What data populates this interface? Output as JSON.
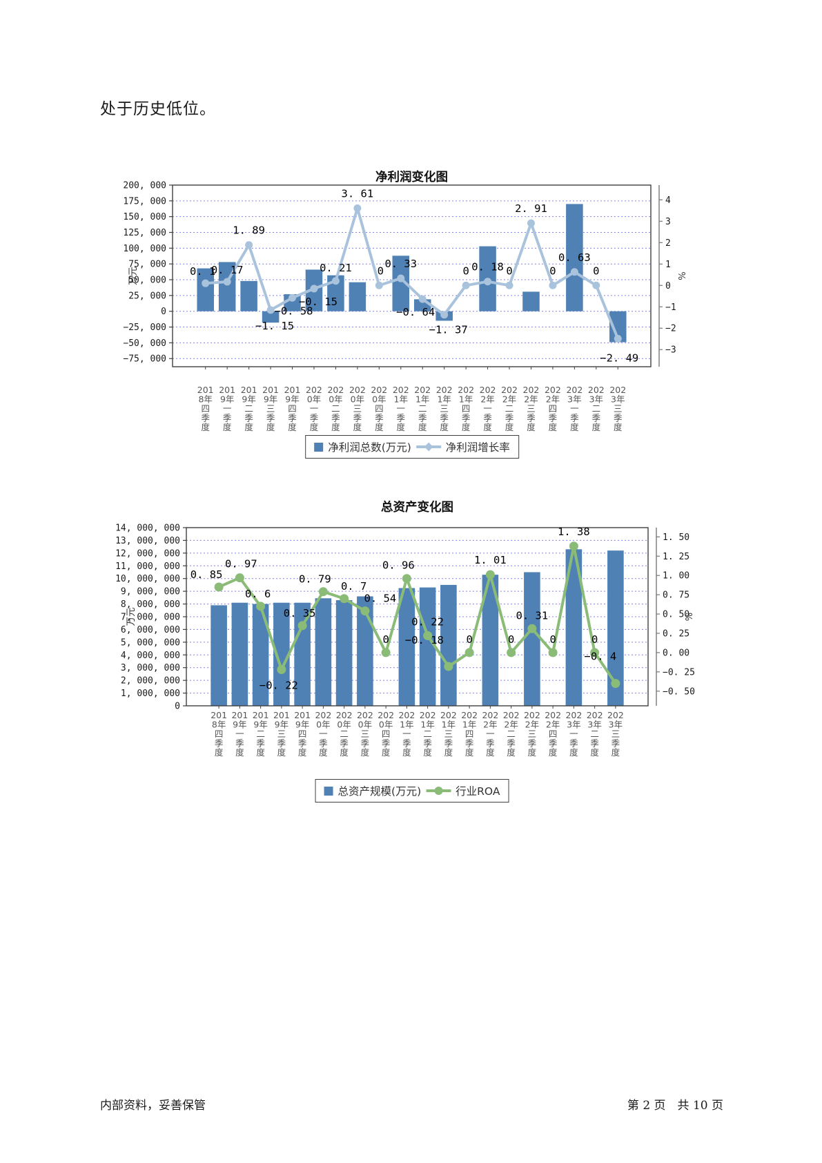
{
  "page": {
    "intro_text": "处于历史低位。",
    "footer": {
      "left": "内部资料，妥善保管",
      "right": "第 2 页　共 10 页"
    }
  },
  "colors": {
    "bar_blue": "#4f81b5",
    "line_light_blue": "#aac3dc",
    "line_green": "#8abc78",
    "gridline": "#8080e8",
    "axis": "#3f3f3f",
    "tick_text": "#1a1a1a",
    "category_text": "#555555"
  },
  "chart_data": [
    {
      "type": "bar",
      "title": "净利润变化图",
      "categories": [
        "2018年四季度",
        "2019年一季度",
        "2019年二季度",
        "2019年三季度",
        "2019年四季度",
        "2020年一季度",
        "2020年二季度",
        "2020年三季度",
        "2020年四季度",
        "2021年一季度",
        "2021年二季度",
        "2021年三季度",
        "2021年四季度",
        "2022年一季度",
        "2022年二季度",
        "2022年三季度",
        "2022年四季度",
        "2023年一季度",
        "2023年二季度",
        "2023年三季度"
      ],
      "series": [
        {
          "name": "净利润总数(万元)",
          "type": "bar",
          "axis": "left",
          "color": "#4f81b5",
          "values": [
            68000,
            78000,
            48000,
            -18000,
            27000,
            66000,
            57000,
            46000,
            0,
            88000,
            19000,
            -15000,
            0,
            103000,
            0,
            31000,
            0,
            170000,
            0,
            -49000
          ]
        },
        {
          "name": "净利润增长率",
          "type": "line",
          "axis": "right",
          "color": "#aac3dc",
          "marker": "circle",
          "values": [
            0.1,
            0.17,
            1.89,
            -1.15,
            -0.58,
            -0.15,
            0.21,
            3.61,
            0,
            0.33,
            -0.64,
            -1.37,
            0,
            0.18,
            0,
            2.91,
            0,
            0.63,
            0,
            -2.49
          ]
        }
      ],
      "left_axis": {
        "title": "万元",
        "min": -87900,
        "max": 200000,
        "tick_min": -75000,
        "tick_max": 200000,
        "tick_step": 25000,
        "tick_decimals": 0
      },
      "right_axis": {
        "title": "%",
        "min": -3.8,
        "max": 4.69,
        "tick_min": -3,
        "tick_max": 4,
        "tick_step": 1,
        "tick_decimals": 0
      },
      "legend_position": "bottom",
      "grid": "horizontal-dashed"
    },
    {
      "type": "bar",
      "title": "总资产变化图",
      "categories": [
        "2018年四季度",
        "2019年一季度",
        "2019年二季度",
        "2019年三季度",
        "2019年四季度",
        "2020年一季度",
        "2020年二季度",
        "2020年三季度",
        "2020年四季度",
        "2021年一季度",
        "2021年二季度",
        "2021年三季度",
        "2021年四季度",
        "2022年一季度",
        "2022年二季度",
        "2022年三季度",
        "2022年四季度",
        "2023年一季度",
        "2023年二季度",
        "2023年三季度"
      ],
      "series": [
        {
          "name": "总资产规模(万元)",
          "type": "bar",
          "axis": "left",
          "color": "#4f81b5",
          "values": [
            7900000,
            8100000,
            8000000,
            8100000,
            8100000,
            8450000,
            8300000,
            8600000,
            0,
            9250000,
            9300000,
            9500000,
            0,
            10300000,
            0,
            10500000,
            0,
            12300000,
            0,
            12200000
          ]
        },
        {
          "name": "行业ROA",
          "type": "line",
          "axis": "right",
          "color": "#8abc78",
          "marker": "circle",
          "values": [
            0.85,
            0.97,
            0.6,
            -0.22,
            0.35,
            0.79,
            0.7,
            0.54,
            0,
            0.96,
            0.22,
            -0.18,
            0,
            1.01,
            0,
            0.31,
            0,
            1.38,
            0,
            -0.4
          ]
        }
      ],
      "left_axis": {
        "title": "万元",
        "min": 0,
        "max": 14000000,
        "tick_min": 0,
        "tick_max": 14000000,
        "tick_step": 1000000,
        "tick_decimals": 0
      },
      "right_axis": {
        "title": "%",
        "min": -0.69,
        "max": 1.62,
        "tick_min": -0.5,
        "tick_max": 1.5,
        "tick_step": 0.25,
        "tick_decimals": 2
      },
      "legend_position": "bottom",
      "grid": "horizontal-dashed"
    }
  ]
}
